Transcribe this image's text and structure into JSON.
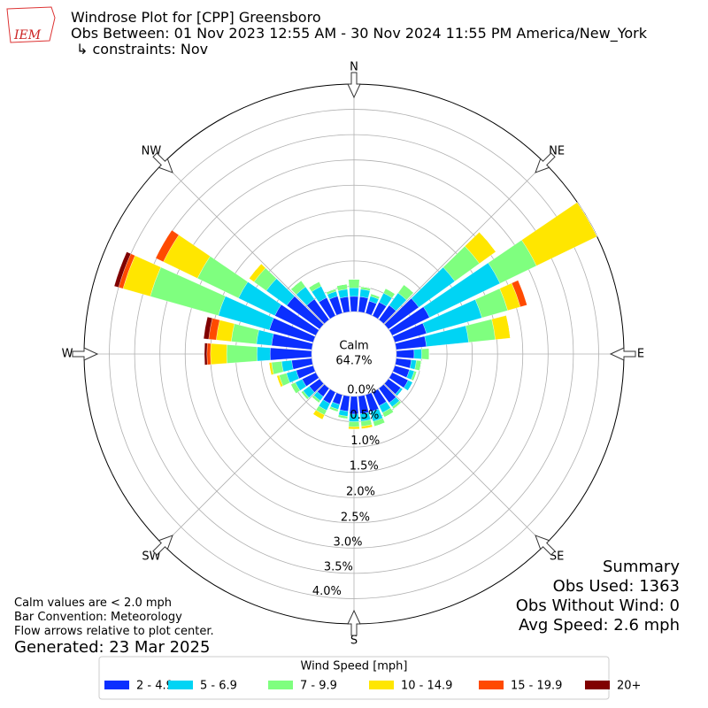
{
  "chart_data": {
    "type": "windrose",
    "title_lines": [
      "Windrose Plot for [CPP] Greensboro",
      "Obs Between: 01 Nov 2023 12:55 AM - 30 Nov 2024 11:55 PM America/New_York",
      "↳ constraints: Nov"
    ],
    "logo_text": "IEM",
    "directions": [
      0,
      10,
      20,
      30,
      40,
      50,
      60,
      70,
      80,
      90,
      100,
      110,
      120,
      130,
      140,
      150,
      160,
      170,
      180,
      190,
      200,
      210,
      220,
      230,
      240,
      250,
      260,
      270,
      280,
      290,
      300,
      310,
      320,
      330,
      340,
      350
    ],
    "direction_labels": [
      "N",
      "NE",
      "E",
      "SE",
      "S",
      "SW",
      "W",
      "NW"
    ],
    "calm_label": "Calm",
    "calm_value": 64.7,
    "calm_value_label": "64.7%",
    "rlim": [
      0,
      4.5
    ],
    "rticks": [
      {
        "value": 0,
        "label": "0.0%"
      },
      {
        "value": 0.5,
        "label": "0.5%"
      },
      {
        "value": 1,
        "label": "1.0%"
      },
      {
        "value": 1.5,
        "label": "1.5%"
      },
      {
        "value": 2,
        "label": "2.0%"
      },
      {
        "value": 2.5,
        "label": "2.5%"
      },
      {
        "value": 3,
        "label": "3.0%"
      },
      {
        "value": 3.5,
        "label": "3.5%"
      },
      {
        "value": 4,
        "label": "4.0%"
      }
    ],
    "legend_title": "Wind Speed [mph]",
    "series": [
      {
        "name": "2 - 4.9",
        "color": "#0b2fff",
        "values": [
          0.3,
          0.3,
          0.25,
          0.3,
          0.35,
          0.74,
          0.82,
          0.65,
          0.6,
          0.35,
          0.3,
          0.3,
          0.35,
          0.3,
          0.35,
          0.3,
          0.35,
          0.35,
          0.35,
          0.3,
          0.2,
          0.25,
          0.2,
          0.25,
          0.3,
          0.35,
          0.4,
          0.82,
          0.8,
          0.9,
          0.9,
          0.8,
          0.5,
          0.4,
          0.35,
          0.3
        ]
      },
      {
        "name": "5 - 6.9",
        "color": "#00d4f4",
        "values": [
          0.17,
          0.15,
          0.1,
          0.2,
          0.3,
          0.88,
          1.55,
          1.14,
          0.84,
          0.15,
          0.1,
          0.1,
          0.1,
          0.05,
          0.1,
          0.15,
          0.2,
          0.15,
          0.15,
          0.1,
          0.1,
          0.15,
          0.1,
          0.15,
          0.15,
          0.2,
          0.2,
          0.26,
          0.3,
          1.05,
          0.8,
          0.5,
          0.3,
          0.25,
          0.1,
          0.15
        ]
      },
      {
        "name": "7 - 9.9",
        "color": "#7fff7f",
        "values": [
          0.17,
          0.05,
          0.05,
          0.1,
          0.2,
          0.6,
          0.8,
          0.53,
          0.53,
          0.15,
          0.1,
          0.05,
          0,
          0,
          0.05,
          0.1,
          0.1,
          0.1,
          0.1,
          0.05,
          0.05,
          0.1,
          0.05,
          0.05,
          0.1,
          0.15,
          0.2,
          0.6,
          0.5,
          1.4,
          0.9,
          0.3,
          0.15,
          0.1,
          0.05,
          0.1
        ]
      },
      {
        "name": "10 - 14.9",
        "color": "#ffe600",
        "values": [
          0,
          0,
          0,
          0,
          0,
          0.4,
          1.33,
          0.26,
          0.3,
          0,
          0,
          0,
          0,
          0,
          0,
          0,
          0,
          0.05,
          0.05,
          0,
          0,
          0.1,
          0,
          0,
          0,
          0.05,
          0.05,
          0.32,
          0.3,
          0.56,
          0.75,
          0.12,
          0,
          0,
          0,
          0
        ]
      },
      {
        "name": "15 - 19.9",
        "color": "#ff4a00",
        "values": [
          0,
          0,
          0,
          0,
          0,
          0,
          0,
          0.14,
          0,
          0,
          0,
          0,
          0,
          0,
          0,
          0,
          0,
          0,
          0,
          0,
          0,
          0,
          0,
          0,
          0,
          0,
          0,
          0.07,
          0.15,
          0.09,
          0.17,
          0,
          0,
          0,
          0,
          0
        ]
      },
      {
        "name": "20+",
        "color": "#800000",
        "values": [
          0,
          0,
          0,
          0,
          0,
          0,
          0,
          0,
          0,
          0,
          0,
          0,
          0,
          0,
          0,
          0,
          0,
          0,
          0,
          0,
          0,
          0,
          0,
          0,
          0,
          0,
          0,
          0.05,
          0.1,
          0.09,
          0,
          0,
          0,
          0,
          0,
          0
        ]
      }
    ],
    "summary_lines": [
      "Summary",
      "Obs Used: 1363",
      "Obs Without Wind: 0",
      "Avg Speed: 2.6 mph"
    ],
    "notes": [
      "Calm values are < 2.0 mph",
      "Bar Convention: Meteorology",
      "Flow arrows relative to plot center."
    ],
    "generated": "Generated: 23 Mar 2025",
    "grid": true
  }
}
